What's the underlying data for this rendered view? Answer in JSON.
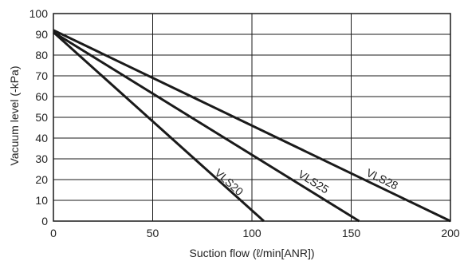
{
  "chart_data": {
    "type": "line",
    "title": "",
    "xlabel": "Suction flow (ℓ/min[ANR])",
    "ylabel": "Vacuum level (-kPa)",
    "xlim": [
      0,
      200
    ],
    "ylim": [
      0,
      100
    ],
    "x_ticks": [
      "0",
      "50",
      "100",
      "150",
      "200"
    ],
    "y_ticks": [
      "0",
      "10",
      "20",
      "30",
      "40",
      "50",
      "60",
      "70",
      "80",
      "90",
      "100"
    ],
    "grid": true,
    "series": [
      {
        "name": "VLS20",
        "x": [
          0,
          106
        ],
        "y": [
          91,
          0
        ]
      },
      {
        "name": "VLS25",
        "x": [
          0,
          154
        ],
        "y": [
          91,
          0
        ]
      },
      {
        "name": "VLS28",
        "x": [
          0,
          200
        ],
        "y": [
          92,
          0
        ]
      }
    ]
  }
}
